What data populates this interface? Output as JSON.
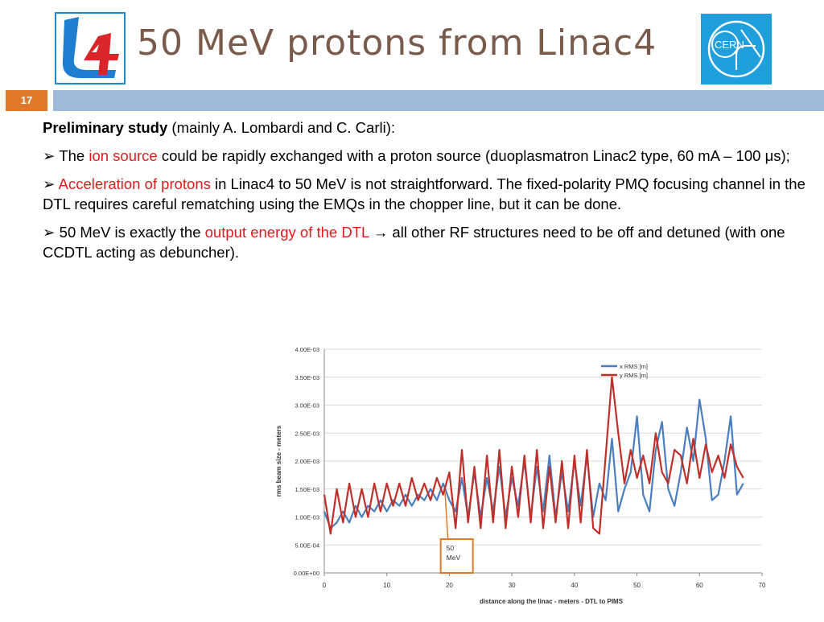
{
  "header": {
    "title": "50 MeV protons from Linac4",
    "slide_number": "17",
    "logo_left_text": "L4",
    "logo_right_text": "CERN"
  },
  "body": {
    "heading_bold": "Preliminary study",
    "heading_rest": " (mainly A. Lombardi and C. Carli):",
    "bullet_glyph": "➢",
    "b1": {
      "a": " The ",
      "red": "ion source",
      "b": " could be rapidly exchanged with a proton source (duoplasmatron Linac2 type, 60 mA – 100 μs);"
    },
    "b2": {
      "a": " ",
      "red": "Acceleration of protons",
      "b": " in Linac4 to 50 MeV is not straightforward. The fixed-polarity PMQ focusing channel in the DTL requires careful rematching using the EMQs in the chopper line, but it can be done."
    },
    "b3": {
      "a": " 50 MeV is exactly the ",
      "red": "output energy of the DTL",
      "b": " → all other RF structures need to be off and detuned (with one CCDTL acting as debuncher)."
    }
  },
  "colors": {
    "accent_orange": "#e07a2a",
    "bar_blue": "#9ebad6",
    "text_red": "#e01b1b",
    "title_brown": "#7a5a4a",
    "series_x": "#4a7fbf",
    "series_y": "#c0302a"
  },
  "chart_data": {
    "type": "line",
    "xlabel": "distance along the linac - meters - DTL to PIMS",
    "ylabel": "rms beam size - meters",
    "xlim": [
      0,
      70
    ],
    "ylim": [
      0,
      0.004
    ],
    "x_ticks": [
      "0",
      "10",
      "20",
      "30",
      "40",
      "50",
      "60",
      "70"
    ],
    "y_ticks": [
      "0.00E+00",
      "5.00E-04",
      "1.00E-03",
      "1.50E-03",
      "2.00E-03",
      "2.50E-03",
      "3.00E-03",
      "3.50E-03",
      "4.00E-03"
    ],
    "grid": true,
    "legend_position": "top-right",
    "annotation": {
      "text": [
        "50",
        "MeV"
      ],
      "x": 19
    },
    "series": [
      {
        "name": "x RMS [m]",
        "color": "#4a7fbf",
        "x": [
          0.0,
          1.0,
          2.0,
          3.0,
          4.0,
          5.0,
          6.0,
          7.0,
          8.0,
          9.0,
          10.0,
          11.0,
          12.0,
          13.0,
          14.0,
          15.0,
          16.0,
          17.0,
          18.0,
          19.0,
          20.0,
          21.0,
          22.0,
          23.0,
          24.0,
          25.0,
          26.0,
          27.0,
          28.0,
          29.0,
          30.0,
          31.0,
          32.0,
          33.0,
          34.0,
          35.0,
          36.0,
          37.0,
          38.0,
          39.0,
          40.0,
          41.0,
          42.0,
          43.0,
          44.0,
          45.0,
          46.0,
          47.0,
          48.0,
          49.0,
          50.0,
          51.0,
          52.0,
          53.0,
          54.0,
          55.0,
          56.0,
          57.0,
          58.0,
          59.0,
          60.0,
          61.0,
          62.0,
          63.0,
          64.0,
          65.0,
          66.0,
          67.0
        ],
        "y": [
          0.0011,
          0.0008,
          0.0009,
          0.0011,
          0.0009,
          0.0012,
          0.001,
          0.0012,
          0.0011,
          0.0013,
          0.0011,
          0.0013,
          0.0012,
          0.0014,
          0.0012,
          0.0014,
          0.0013,
          0.0015,
          0.0013,
          0.0016,
          0.0013,
          0.0011,
          0.0017,
          0.001,
          0.0018,
          0.001,
          0.0017,
          0.0011,
          0.0019,
          0.001,
          0.0017,
          0.0012,
          0.002,
          0.001,
          0.0019,
          0.0011,
          0.0021,
          0.001,
          0.0018,
          0.0011,
          0.002,
          0.0012,
          0.0021,
          0.001,
          0.0016,
          0.0013,
          0.0024,
          0.0011,
          0.0015,
          0.0018,
          0.0028,
          0.0014,
          0.0011,
          0.0022,
          0.0027,
          0.0015,
          0.0012,
          0.0018,
          0.0026,
          0.002,
          0.0031,
          0.0024,
          0.0013,
          0.0014,
          0.002,
          0.0028,
          0.0014,
          0.0016
        ]
      },
      {
        "name": "y RMS [m]",
        "color": "#c0302a",
        "x": [
          0.0,
          1.0,
          2.0,
          3.0,
          4.0,
          5.0,
          6.0,
          7.0,
          8.0,
          9.0,
          10.0,
          11.0,
          12.0,
          13.0,
          14.0,
          15.0,
          16.0,
          17.0,
          18.0,
          19.0,
          20.0,
          21.0,
          22.0,
          23.0,
          24.0,
          25.0,
          26.0,
          27.0,
          28.0,
          29.0,
          30.0,
          31.0,
          32.0,
          33.0,
          34.0,
          35.0,
          36.0,
          37.0,
          38.0,
          39.0,
          40.0,
          41.0,
          42.0,
          43.0,
          44.0,
          45.0,
          46.0,
          47.0,
          48.0,
          49.0,
          50.0,
          51.0,
          52.0,
          53.0,
          54.0,
          55.0,
          56.0,
          57.0,
          58.0,
          59.0,
          60.0,
          61.0,
          62.0,
          63.0,
          64.0,
          65.0,
          66.0,
          67.0
        ],
        "y": [
          0.0014,
          0.0007,
          0.0015,
          0.0009,
          0.0016,
          0.001,
          0.0015,
          0.001,
          0.0016,
          0.0011,
          0.0016,
          0.0012,
          0.0016,
          0.0012,
          0.0017,
          0.0013,
          0.0016,
          0.0013,
          0.0017,
          0.0014,
          0.0018,
          0.0008,
          0.0022,
          0.0009,
          0.0019,
          0.0008,
          0.0021,
          0.0009,
          0.0022,
          0.0008,
          0.0019,
          0.001,
          0.0021,
          0.0009,
          0.0022,
          0.0008,
          0.0019,
          0.0009,
          0.002,
          0.0008,
          0.0021,
          0.0009,
          0.0022,
          0.0008,
          0.0007,
          0.0021,
          0.0035,
          0.0025,
          0.0016,
          0.0022,
          0.0017,
          0.0021,
          0.0016,
          0.0025,
          0.0018,
          0.0016,
          0.0022,
          0.0021,
          0.0016,
          0.0024,
          0.0017,
          0.0023,
          0.0018,
          0.0021,
          0.0017,
          0.0023,
          0.0019,
          0.0017
        ]
      }
    ]
  }
}
